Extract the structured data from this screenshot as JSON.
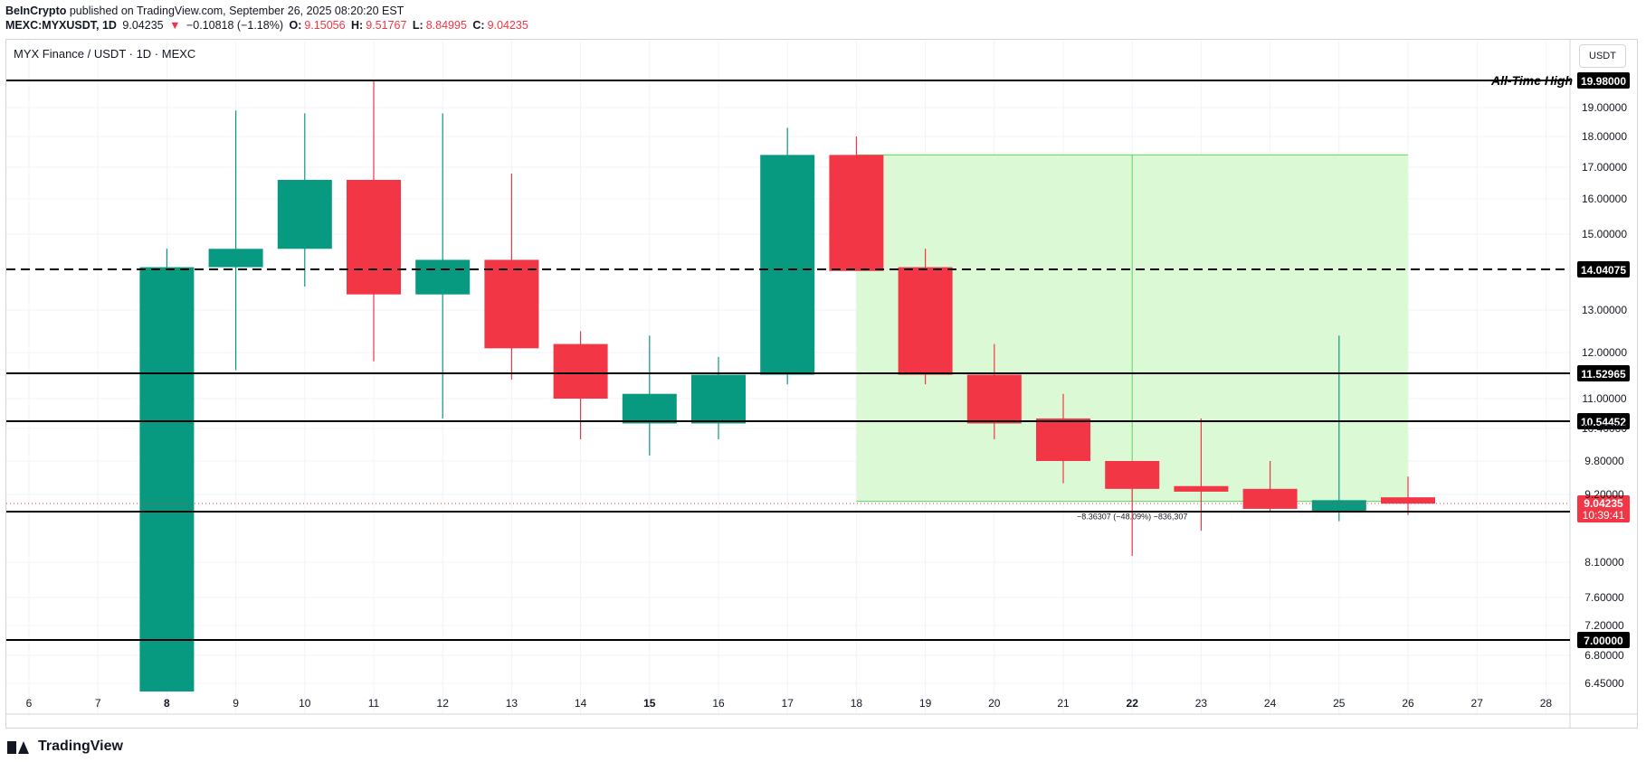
{
  "header": {
    "author": "BeInCrypto",
    "published": "published on TradingView.com, September 26, 2025 08:20:20 EST",
    "symbol": "MEXC:MYXUSDT, 1D",
    "last": "9.04235",
    "arrow": "▼",
    "change": "−0.10818 (−1.18%)",
    "o_label": "O:",
    "o_val": "9.15056",
    "h_label": "H:",
    "h_val": "9.51767",
    "l_label": "L:",
    "l_val": "8.84995",
    "c_label": "C:",
    "c_val": "9.04235"
  },
  "instrument_title": "MYX Finance / USDT · 1D · MEXC",
  "currency": "USDT",
  "footer": {
    "brand": "TradingView"
  },
  "colors": {
    "up": "#089981",
    "down": "#f23645",
    "zone_fill": "#dcf9d6",
    "zone_stroke": "#5bd65b"
  },
  "chart_data": {
    "type": "candlestick",
    "x_axis": [
      "6",
      "7",
      "8",
      "9",
      "10",
      "11",
      "12",
      "13",
      "14",
      "15",
      "16",
      "17",
      "18",
      "19",
      "20",
      "21",
      "22",
      "23",
      "24",
      "25",
      "26",
      "27",
      "28"
    ],
    "x_bold_ticks": [
      "8",
      "15",
      "22"
    ],
    "y_ticks": [
      19.0,
      18.0,
      17.0,
      16.0,
      15.0,
      13.0,
      12.0,
      11.0,
      10.4,
      9.8,
      9.2,
      8.1,
      7.6,
      7.2,
      6.8,
      6.45
    ],
    "y_tick_labels": [
      "19.00000",
      "18.00000",
      "17.00000",
      "16.00000",
      "15.00000",
      "13.00000",
      "12.00000",
      "11.00000",
      "10.40000",
      "9.80000",
      "9.20000",
      "8.10000",
      "7.60000",
      "7.20000",
      "6.80000",
      "6.45000"
    ],
    "candles": [
      {
        "day": "8",
        "o": 6.35,
        "h": 14.6,
        "l": 6.35,
        "c": 14.1
      },
      {
        "day": "9",
        "o": 14.1,
        "h": 18.9,
        "l": 11.6,
        "c": 14.6
      },
      {
        "day": "10",
        "o": 14.6,
        "h": 18.8,
        "l": 13.6,
        "c": 16.6
      },
      {
        "day": "11",
        "o": 16.6,
        "h": 19.98,
        "l": 11.8,
        "c": 13.4
      },
      {
        "day": "12",
        "o": 13.4,
        "h": 18.8,
        "l": 10.6,
        "c": 14.3
      },
      {
        "day": "13",
        "o": 14.3,
        "h": 16.8,
        "l": 11.4,
        "c": 12.1
      },
      {
        "day": "14",
        "o": 12.2,
        "h": 12.5,
        "l": 10.2,
        "c": 11.0
      },
      {
        "day": "15",
        "o": 10.5,
        "h": 12.4,
        "l": 9.9,
        "c": 11.1
      },
      {
        "day": "16",
        "o": 10.5,
        "h": 11.9,
        "l": 10.2,
        "c": 11.5
      },
      {
        "day": "17",
        "o": 11.5,
        "h": 18.3,
        "l": 11.3,
        "c": 17.4
      },
      {
        "day": "18",
        "o": 17.4,
        "h": 18.0,
        "l": 14.0,
        "c": 14.0
      },
      {
        "day": "19",
        "o": 14.1,
        "h": 14.6,
        "l": 11.3,
        "c": 11.5
      },
      {
        "day": "20",
        "o": 11.5,
        "h": 12.2,
        "l": 10.2,
        "c": 10.5
      },
      {
        "day": "21",
        "o": 10.6,
        "h": 11.1,
        "l": 9.4,
        "c": 9.8
      },
      {
        "day": "22",
        "o": 9.8,
        "h": 9.8,
        "l": 8.2,
        "c": 9.3
      },
      {
        "day": "23",
        "o": 9.35,
        "h": 10.6,
        "l": 8.6,
        "c": 9.25
      },
      {
        "day": "24",
        "o": 9.3,
        "h": 9.8,
        "l": 8.9,
        "c": 8.95
      },
      {
        "day": "25",
        "o": 8.9,
        "h": 12.4,
        "l": 8.75,
        "c": 9.1
      },
      {
        "day": "26",
        "o": 9.15,
        "h": 9.52,
        "l": 8.85,
        "c": 9.04
      }
    ],
    "levels": [
      {
        "value": 19.98,
        "label": "19.98000",
        "style": "solid",
        "annotation": "All-Time High"
      },
      {
        "value": 14.04075,
        "label": "14.04075",
        "style": "dashed"
      },
      {
        "value": 11.52965,
        "label": "11.52965",
        "style": "solid"
      },
      {
        "value": 10.54452,
        "label": "10.54452",
        "style": "solid"
      },
      {
        "value": 8.90205,
        "label": "8.90205",
        "style": "solid"
      },
      {
        "value": 7.0,
        "label": "7.00000",
        "style": "solid"
      }
    ],
    "current_price": {
      "value": 9.04235,
      "label": "9.04235",
      "countdown": "10:39:41"
    },
    "measure_zone": {
      "from_day": "18",
      "to_day": "26",
      "top": 17.4,
      "bottom": 9.08,
      "divider_day": "22"
    },
    "measure_label": "−8.36307 (−48.09%) −836,307"
  }
}
